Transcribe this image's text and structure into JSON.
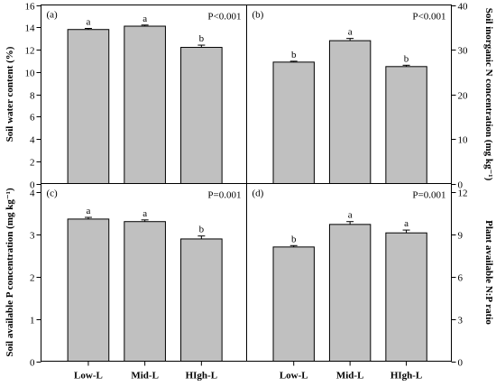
{
  "chart_data": [
    {
      "type": "bar",
      "panel_label": "(a)",
      "p_value": "P<0.001",
      "ylabel": "Soil water content (%)",
      "categories": [
        "Low-L",
        "Mid-L",
        "HIgh-L"
      ],
      "values": [
        13.8,
        14.1,
        12.2
      ],
      "errors": [
        0.1,
        0.1,
        0.2
      ],
      "letters": [
        "a",
        "a",
        "b"
      ],
      "ylim": [
        0,
        16
      ],
      "yticks": [
        "0",
        "2",
        "4",
        "6",
        "8",
        "10",
        "12",
        "14",
        "16"
      ],
      "y_axis_side": "left",
      "bar_color": "#c0c0c0"
    },
    {
      "type": "bar",
      "panel_label": "(b)",
      "p_value": "P<0.001",
      "ylabel": "Soil inorganic N concentration (mg kg⁻¹)",
      "categories": [
        "Low-L",
        "Mid-L",
        "HIgh-L"
      ],
      "values": [
        27.2,
        32.0,
        26.2
      ],
      "errors": [
        0.2,
        0.5,
        0.3
      ],
      "letters": [
        "b",
        "a",
        "b"
      ],
      "ylim": [
        0,
        40
      ],
      "yticks": [
        "0",
        "10",
        "20",
        "30",
        "40"
      ],
      "y_axis_side": "right",
      "bar_color": "#c0c0c0"
    },
    {
      "type": "bar",
      "panel_label": "(c)",
      "p_value": "P=0.001",
      "ylabel": "Soil available P concentration (mg kg⁻¹)",
      "categories": [
        "Low-L",
        "Mid-L",
        "HIgh-L"
      ],
      "values": [
        3.36,
        3.3,
        2.89
      ],
      "errors": [
        0.04,
        0.04,
        0.07
      ],
      "letters": [
        "a",
        "a",
        "b"
      ],
      "ylim": [
        0,
        4.2
      ],
      "yticks": [
        "0",
        "1",
        "2",
        "3",
        "4"
      ],
      "ytick_values": [
        0,
        1,
        2,
        3,
        4
      ],
      "y_axis_side": "left",
      "bar_color": "#c0c0c0"
    },
    {
      "type": "bar",
      "panel_label": "(d)",
      "p_value": "P=0.001",
      "ylabel": "Plant available N:P ratio",
      "categories": [
        "Low-L",
        "Mid-L",
        "HIgh-L"
      ],
      "values": [
        8.1,
        9.7,
        9.1
      ],
      "errors": [
        0.1,
        0.2,
        0.2
      ],
      "letters": [
        "b",
        "a",
        "a"
      ],
      "ylim": [
        0,
        12.6
      ],
      "yticks": [
        "0",
        "3",
        "6",
        "9",
        "12"
      ],
      "ytick_values": [
        0,
        3,
        6,
        9,
        12
      ],
      "y_axis_side": "right",
      "bar_color": "#c0c0c0"
    }
  ]
}
